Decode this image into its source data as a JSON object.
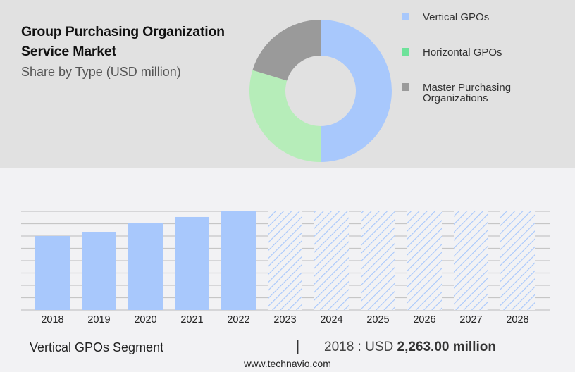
{
  "header": {
    "title_line1": "Group Purchasing Organization",
    "title_line2": "Service Market",
    "subtitle": "Share by Type (USD million)"
  },
  "legend": [
    {
      "label": "Vertical GPOs",
      "color": "#a8c8fc"
    },
    {
      "label": "Horizontal GPOs",
      "color": "#6ee29a"
    },
    {
      "label_line1": "Master Purchasing",
      "label_line2": "Organizations",
      "color": "#9a9a9a"
    }
  ],
  "footer": {
    "segment": "Vertical GPOs Segment",
    "separator": "|",
    "value_prefix": "2018 : USD",
    "value_bold": "2,263.00 million",
    "website": "www.technavio.com"
  },
  "chart_data": [
    {
      "type": "pie",
      "title": "Share by Type (USD million)",
      "donut": true,
      "labels": [
        "Vertical GPOs",
        "Horizontal GPOs",
        "Master Purchasing Organizations"
      ],
      "values": [
        50.0,
        29.7,
        20.3
      ],
      "colors": [
        "#a8c8fc",
        "#b6edb9",
        "#9a9a9a"
      ]
    },
    {
      "type": "bar",
      "title": "Vertical GPOs Segment",
      "categories": [
        "2018",
        "2019",
        "2020",
        "2021",
        "2022",
        "2023",
        "2024",
        "2025",
        "2026",
        "2027",
        "2028"
      ],
      "values": [
        2263,
        2392,
        2672,
        2845,
        3017,
        null,
        null,
        null,
        null,
        null,
        null
      ],
      "forecast_categories": [
        "2023",
        "2024",
        "2025",
        "2026",
        "2027",
        "2028"
      ],
      "xlabel": "",
      "ylabel": "USD million",
      "grid": true,
      "ylim": [
        0,
        3017
      ],
      "bar_color": "#a8c8fc",
      "annotation": "2018 : USD 2,263.00 million"
    }
  ]
}
